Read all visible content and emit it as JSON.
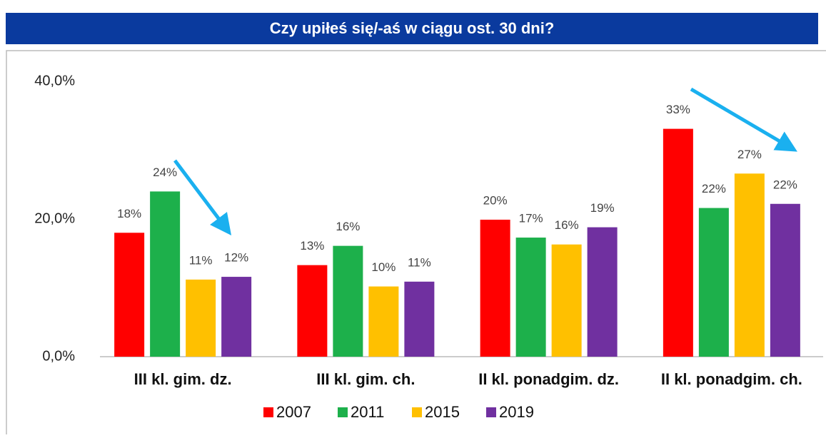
{
  "chart_data": {
    "type": "bar",
    "title": "Czy  upiłeś się/-aś w ciągu ost. 30 dni?",
    "categories": [
      "III kl. gim. dz.",
      "III kl. gim. ch.",
      "II kl. ponadgim. dz.",
      "II kl. ponadgim. ch."
    ],
    "series": [
      {
        "name": "2007",
        "color": "#ff0000",
        "values": [
          18.0,
          13.3,
          19.9,
          33.1
        ],
        "value_labels": [
          "18%",
          "13%",
          "20%",
          "33%"
        ]
      },
      {
        "name": "2011",
        "color": "#1db04b",
        "values": [
          24.0,
          16.1,
          17.3,
          21.6
        ],
        "value_labels": [
          "24%",
          "16%",
          "17%",
          "22%"
        ]
      },
      {
        "name": "2015",
        "color": "#ffc000",
        "values": [
          11.2,
          10.2,
          16.3,
          26.6
        ],
        "value_labels": [
          "11%",
          "10%",
          "16%",
          "27%"
        ]
      },
      {
        "name": "2019",
        "color": "#7030a0",
        "values": [
          11.6,
          10.9,
          18.8,
          22.2
        ],
        "value_labels": [
          "12%",
          "11%",
          "19%",
          "22%"
        ]
      }
    ],
    "ylim": [
      0,
      40
    ],
    "yticks": [
      {
        "value": 0,
        "label": "0,0%"
      },
      {
        "value": 20,
        "label": "20,0%"
      },
      {
        "value": 40,
        "label": "40,0%"
      }
    ],
    "grid": false,
    "legend": "bottom"
  }
}
